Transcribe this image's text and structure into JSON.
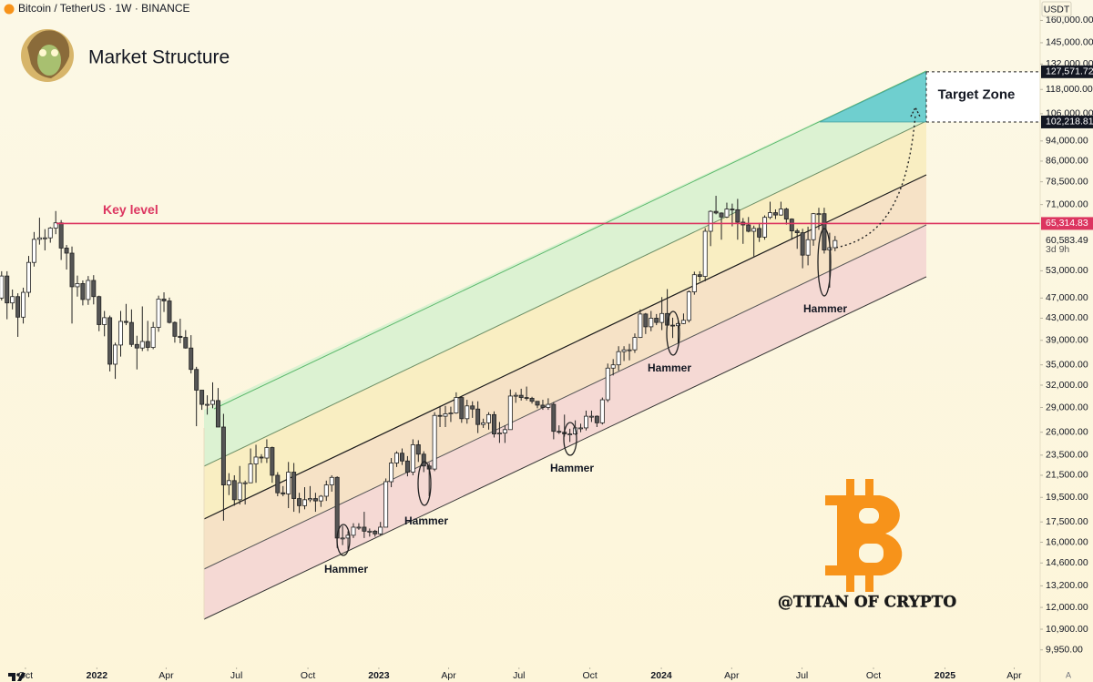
{
  "header": {
    "symbol": "Bitcoin / TetherUS · 1W · BINANCE",
    "currency": "USDT",
    "auto": "A"
  },
  "watermark": "@TITAN OF CRYPTO",
  "chart_data": {
    "type": "candlestick",
    "title": "Market Structure",
    "log_scale": true,
    "grid": false,
    "up_color": "#ffffff",
    "down_color": "#555555",
    "wick_color": "#222222",
    "categories": [
      null,
      null,
      null,
      null,
      null,
      null,
      null,
      null,
      null,
      null,
      null,
      null,
      null,
      null,
      null,
      null,
      null,
      null,
      null,
      null,
      null,
      null,
      null,
      null,
      null,
      null,
      null,
      null,
      null,
      null,
      null,
      null,
      null,
      null,
      null,
      null,
      null,
      null,
      null,
      null,
      null,
      null,
      null,
      null,
      null,
      null,
      null,
      null,
      null,
      null,
      null,
      null,
      null,
      null,
      null,
      null,
      null,
      null,
      null,
      null,
      null,
      null,
      null,
      null,
      null,
      null,
      null,
      null,
      null,
      null,
      null,
      null,
      null,
      null,
      null,
      null,
      null,
      null,
      null,
      null,
      null,
      null,
      null,
      null,
      null,
      null,
      null,
      null,
      null,
      null,
      null,
      null,
      null,
      null,
      null,
      null,
      null,
      null,
      null,
      null,
      null,
      null,
      null,
      null,
      null,
      null,
      null,
      null,
      null,
      null,
      null,
      null,
      null,
      null,
      null,
      null,
      null,
      null,
      null,
      null,
      null,
      null,
      null,
      null,
      null,
      null,
      null,
      null,
      null,
      null,
      null,
      null,
      null,
      null,
      null,
      null,
      null,
      null,
      null,
      null,
      null,
      null,
      null,
      null,
      null,
      null,
      null,
      null,
      null,
      null,
      null,
      null,
      null,
      null,
      null
    ],
    "open": [
      47000,
      51800,
      46000,
      47300,
      43200,
      48200,
      55000,
      60900,
      61300,
      61300,
      64000,
      65500,
      58600,
      57300,
      49400,
      50100,
      46700,
      50800,
      47300,
      41800,
      43100,
      35100,
      38200,
      42400,
      42200,
      38300,
      37700,
      38800,
      37800,
      41300,
      46800,
      46400,
      42200,
      39700,
      39500,
      37700,
      34300,
      31300,
      29400,
      29400,
      29900,
      26600,
      20600,
      21000,
      19300,
      20800,
      20800,
      22600,
      23300,
      23200,
      24300,
      21500,
      19900,
      19800,
      21800,
      19400,
      18800,
      19300,
      19400,
      19200,
      19600,
      20600,
      21300,
      16300,
      16300,
      16500,
      17100,
      17100,
      16800,
      16800,
      16600,
      17100,
      20900,
      22700,
      23700,
      22900,
      21800,
      24600,
      23600,
      22400,
      22100,
      28000,
      27900,
      28200,
      28300,
      30300,
      27600,
      29200,
      28800,
      26900,
      27100,
      28100,
      25800,
      25900,
      26300,
      30500,
      30600,
      30300,
      30200,
      29800,
      29300,
      29000,
      29400,
      26100,
      26000,
      25800,
      25800,
      26500,
      26500,
      27900,
      27900,
      27100,
      30000,
      34500,
      35000,
      37100,
      37400,
      37400,
      39500,
      43800,
      41400,
      43000,
      42200,
      43900,
      41700,
      41600,
      42000,
      42600,
      48300,
      52100,
      51700,
      63100,
      68900,
      68400,
      67200,
      69600,
      69400,
      65700,
      64900,
      63100,
      63900,
      61500,
      67100,
      68500,
      67800,
      69600,
      66600,
      63200,
      62700,
      56800,
      60800,
      68200,
      68200,
      58100,
      58700
    ],
    "high": [
      52900,
      52900,
      48800,
      48000,
      49200,
      56600,
      62900,
      67000,
      63700,
      64300,
      69000,
      66300,
      59400,
      59000,
      51900,
      50800,
      51800,
      52000,
      47500,
      44400,
      43500,
      38600,
      44400,
      45800,
      44700,
      39800,
      45300,
      42500,
      42300,
      47500,
      48200,
      47100,
      42400,
      42900,
      40800,
      39900,
      34700,
      31300,
      30600,
      32400,
      31600,
      28200,
      21700,
      21500,
      22400,
      21000,
      24200,
      24600,
      23600,
      25200,
      24400,
      21800,
      20500,
      22800,
      22700,
      19900,
      20400,
      20500,
      19900,
      19700,
      21000,
      21500,
      21400,
      17200,
      16800,
      17400,
      17400,
      18300,
      17000,
      16900,
      17500,
      21200,
      23200,
      23900,
      24200,
      23400,
      25200,
      25100,
      23900,
      22700,
      28400,
      29200,
      29200,
      29100,
      31000,
      30500,
      30000,
      29800,
      29800,
      27600,
      28400,
      28500,
      27200,
      26800,
      31400,
      31000,
      31500,
      31800,
      30400,
      29800,
      30000,
      30200,
      29700,
      26800,
      28100,
      26400,
      27400,
      27000,
      28600,
      28600,
      28000,
      30300,
      35200,
      35900,
      38000,
      38000,
      38400,
      40200,
      44700,
      44000,
      44400,
      43800,
      47200,
      48900,
      43100,
      43000,
      43900,
      48600,
      52800,
      52900,
      64000,
      69200,
      73800,
      68600,
      71600,
      71300,
      72800,
      66900,
      67200,
      64700,
      65500,
      67700,
      71900,
      69500,
      71900,
      70000,
      66800,
      63800,
      63800,
      64400,
      68400,
      70000,
      70000,
      62700,
      61800
    ],
    "low": [
      46500,
      42800,
      44700,
      39600,
      42000,
      47200,
      54000,
      59500,
      58000,
      60000,
      62300,
      55600,
      53300,
      42000,
      47300,
      45500,
      45600,
      45700,
      40600,
      39700,
      34000,
      32900,
      36300,
      41700,
      37900,
      34300,
      37200,
      37200,
      37500,
      40500,
      44200,
      42000,
      38600,
      38500,
      37600,
      33700,
      26700,
      28700,
      28100,
      28900,
      26600,
      17600,
      19700,
      18800,
      18900,
      18900,
      20800,
      20800,
      22700,
      22700,
      20800,
      19600,
      19600,
      18600,
      18300,
      18200,
      18500,
      19100,
      18300,
      18700,
      19200,
      20000,
      15600,
      15800,
      15500,
      16300,
      16900,
      16300,
      16400,
      16400,
      16500,
      17100,
      20400,
      22300,
      22500,
      21400,
      21500,
      22800,
      21800,
      19600,
      21900,
      26600,
      26600,
      27200,
      28200,
      27100,
      27000,
      27700,
      25900,
      26500,
      26300,
      25400,
      24800,
      24800,
      26300,
      29600,
      29900,
      29900,
      29500,
      28900,
      28700,
      28700,
      25200,
      25800,
      25500,
      24900,
      25700,
      26000,
      26200,
      27200,
      26600,
      26900,
      29700,
      33400,
      34100,
      35600,
      35700,
      36900,
      39400,
      40100,
      40600,
      41700,
      40800,
      41600,
      39400,
      38500,
      41900,
      42200,
      47700,
      50600,
      50600,
      59100,
      68000,
      60800,
      66900,
      64500,
      60800,
      59700,
      62800,
      56500,
      60200,
      60800,
      66600,
      66600,
      67600,
      65000,
      60800,
      58400,
      53600,
      54300,
      59200,
      63500,
      57200,
      49200,
      57800
    ],
    "close": [
      51800,
      46000,
      47300,
      43200,
      48200,
      55000,
      60900,
      61300,
      61300,
      64000,
      65500,
      58600,
      57300,
      49400,
      50100,
      46700,
      50800,
      47300,
      41800,
      43100,
      35100,
      38200,
      42400,
      42200,
      38300,
      37700,
      38800,
      37800,
      41300,
      46800,
      46400,
      42200,
      39700,
      39500,
      37700,
      34300,
      31300,
      29400,
      29400,
      29900,
      26600,
      20600,
      21000,
      19300,
      20800,
      20800,
      22600,
      23300,
      23200,
      24300,
      21500,
      19900,
      19800,
      21800,
      19400,
      18800,
      19300,
      19400,
      19200,
      19600,
      20600,
      21300,
      16300,
      16300,
      16500,
      17100,
      17100,
      16800,
      16800,
      16600,
      17100,
      20900,
      22700,
      23700,
      22900,
      21800,
      24600,
      23600,
      22400,
      22100,
      28000,
      27900,
      28200,
      28300,
      30300,
      27600,
      29200,
      28800,
      26900,
      27100,
      28100,
      25800,
      25900,
      26300,
      30500,
      30600,
      30300,
      30200,
      29800,
      29300,
      29000,
      29400,
      26100,
      26000,
      25800,
      25800,
      26500,
      26500,
      27900,
      27900,
      27100,
      30000,
      34500,
      35000,
      37100,
      37400,
      37400,
      39500,
      43800,
      41400,
      43000,
      42200,
      43900,
      41700,
      41600,
      42000,
      42600,
      48300,
      52100,
      51700,
      63100,
      68900,
      68400,
      67200,
      69600,
      69400,
      65700,
      64900,
      63100,
      63900,
      61500,
      67100,
      68500,
      67800,
      69600,
      66600,
      63200,
      62700,
      56800,
      60800,
      68200,
      68200,
      58100,
      58700,
      60583.49
    ],
    "xlim": [
      -0.3,
      191.9
    ],
    "xticks": [
      {
        "value": 4.4,
        "label": "Oct"
      },
      {
        "value": 17.6,
        "label": "2022"
      },
      {
        "value": 30.4,
        "label": "Apr"
      },
      {
        "value": 43.4,
        "label": "Jul"
      },
      {
        "value": 56.6,
        "label": "Oct"
      },
      {
        "value": 69.7,
        "label": "2023"
      },
      {
        "value": 82.6,
        "label": "Apr"
      },
      {
        "value": 95.6,
        "label": "Jul"
      },
      {
        "value": 108.7,
        "label": "Oct"
      },
      {
        "value": 121.9,
        "label": "2024"
      },
      {
        "value": 134.9,
        "label": "Apr"
      },
      {
        "value": 147.9,
        "label": "Jul"
      },
      {
        "value": 161.1,
        "label": "Oct"
      },
      {
        "value": 174.3,
        "label": "2025"
      },
      {
        "value": 187.1,
        "label": "Apr"
      }
    ],
    "ylim": [
      8635,
      175100
    ],
    "yticks": [
      {
        "value": 160000,
        "label": "160,000.00"
      },
      {
        "value": 145000,
        "label": "145,000.00"
      },
      {
        "value": 132000,
        "label": "132,000.00"
      },
      {
        "value": 118000,
        "label": "118,000.00"
      },
      {
        "value": 106000,
        "label": "106,000.00"
      },
      {
        "value": 94000,
        "label": "94,000.00"
      },
      {
        "value": 86000,
        "label": "86,000.00"
      },
      {
        "value": 78500,
        "label": "78,500.00"
      },
      {
        "value": 71000,
        "label": "71,000.00"
      },
      {
        "value": 53000,
        "label": "53,000.00"
      },
      {
        "value": 47000,
        "label": "47,000.00"
      },
      {
        "value": 43000,
        "label": "43,000.00"
      },
      {
        "value": 39000,
        "label": "39,000.00"
      },
      {
        "value": 35000,
        "label": "35,000.00"
      },
      {
        "value": 32000,
        "label": "32,000.00"
      },
      {
        "value": 29000,
        "label": "29,000.00"
      },
      {
        "value": 26000,
        "label": "26,000.00"
      },
      {
        "value": 23500,
        "label": "23,500.00"
      },
      {
        "value": 21500,
        "label": "21,500.00"
      },
      {
        "value": 19500,
        "label": "19,500.00"
      },
      {
        "value": 17500,
        "label": "17,500.00"
      },
      {
        "value": 16000,
        "label": "16,000.00"
      },
      {
        "value": 14600,
        "label": "14,600.00"
      },
      {
        "value": 13200,
        "label": "13,200.00"
      },
      {
        "value": 12000,
        "label": "12,000.00"
      },
      {
        "value": 10900,
        "label": "10,900.00"
      },
      {
        "value": 9950,
        "label": "9,950.00"
      }
    ],
    "key_level": {
      "text": "Key level",
      "value": 65314.83,
      "label": "65,314.83",
      "color": "#dc3560"
    },
    "target_zone": {
      "text": "Target Zone",
      "color": "#6fcfcf",
      "top": {
        "value": 127571.72,
        "label": "127,571.72"
      },
      "bottom": {
        "value": 102218.81,
        "label": "102,218.81"
      }
    },
    "last_price": {
      "value": 60583.49,
      "label": "60,583.49",
      "countdown": "3d 9h"
    },
    "annotations": [
      "Hammer",
      "Hammer",
      "Hammer",
      "Hammer",
      "Hammer"
    ]
  }
}
